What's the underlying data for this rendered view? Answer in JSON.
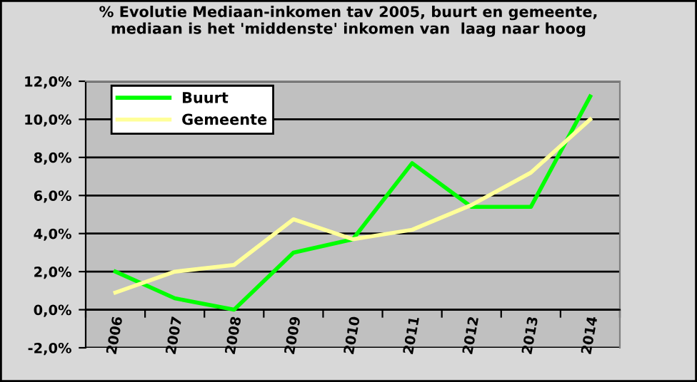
{
  "chart_data": {
    "type": "line",
    "title": "% Evolutie Mediaan-inkomen tav 2005, buurt en gemeente,\nmediaan is het 'middenste' inkomen van  laag naar hoog",
    "categories": [
      "2006",
      "2007",
      "2008",
      "2009",
      "2010",
      "2011",
      "2012",
      "2013",
      "2014"
    ],
    "series": [
      {
        "name": "Buurt",
        "color": "#00ff00",
        "values": [
          2.0,
          0.6,
          0.0,
          3.0,
          3.7,
          7.7,
          5.4,
          5.4,
          11.2
        ]
      },
      {
        "name": "Gemeente",
        "color": "#ffff99",
        "values": [
          0.9,
          2.0,
          2.35,
          4.75,
          3.7,
          4.2,
          5.5,
          7.2,
          10.0
        ]
      }
    ],
    "ylim": [
      -2,
      12
    ],
    "yticks": [
      {
        "value": -2,
        "label": "-2,0%"
      },
      {
        "value": 0,
        "label": "0,0%"
      },
      {
        "value": 2,
        "label": "2,0%"
      },
      {
        "value": 4,
        "label": "4,0%"
      },
      {
        "value": 6,
        "label": "6,0%"
      },
      {
        "value": 8,
        "label": "8,0%"
      },
      {
        "value": 10,
        "label": "10,0%"
      },
      {
        "value": 12,
        "label": "12,0%"
      }
    ],
    "grid": "y",
    "legend": "top left",
    "marker": "none",
    "line_style": "solid"
  }
}
